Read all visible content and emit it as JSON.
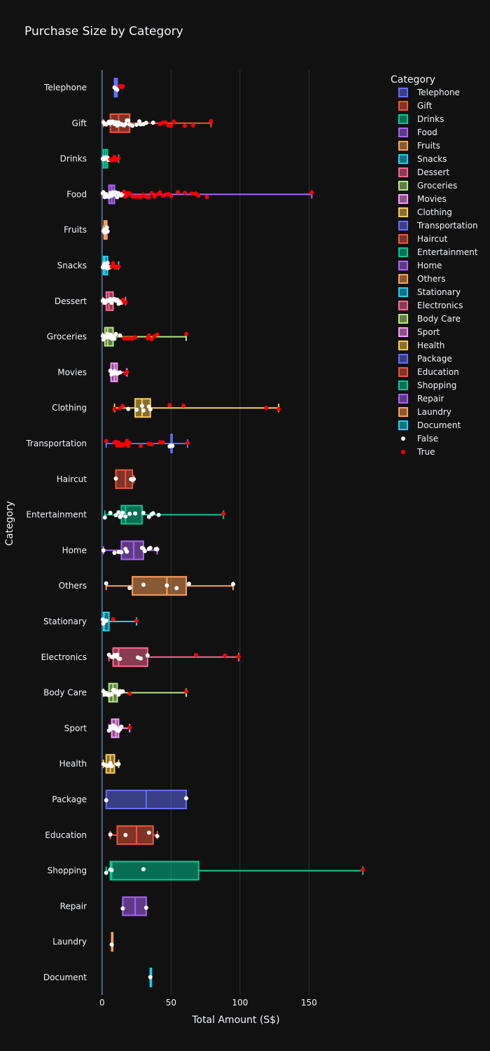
{
  "chart_data": {
    "type": "box",
    "title": "Purchase Size by Category",
    "xlabel": "Total Amount (S$)",
    "ylabel": "Category",
    "xlim": [
      -7,
      200
    ],
    "xticks": [
      0,
      50,
      100,
      150
    ],
    "grid": "vertical",
    "legend": {
      "title": "Category",
      "placement": "right"
    },
    "point_legend": [
      {
        "name": "False",
        "color": "#ffffff"
      },
      {
        "name": "True",
        "color": "#ff0000"
      }
    ],
    "series": [
      {
        "name": "Telephone",
        "color": "#636efa",
        "q1": 9,
        "median": 10,
        "q3": 11,
        "lo": 9,
        "hi": 11,
        "points_false": [
          9,
          10,
          10,
          11
        ],
        "points_true": [
          13,
          14,
          15
        ]
      },
      {
        "name": "Gift",
        "color": "#ef553b",
        "q1": 6,
        "median": 12,
        "q3": 20,
        "lo": 1,
        "hi": 79,
        "points_false": [
          1,
          2,
          3,
          4,
          5,
          6,
          7,
          8,
          9,
          10,
          11,
          12,
          13,
          14,
          15,
          16,
          17,
          18,
          19,
          20,
          22,
          25,
          27,
          28,
          30,
          32,
          37
        ],
        "points_true": [
          42,
          44,
          46,
          48,
          50,
          52,
          60,
          66,
          79
        ]
      },
      {
        "name": "Drinks",
        "color": "#00cc96",
        "q1": 1,
        "median": 2.5,
        "q3": 4,
        "lo": 0.5,
        "hi": 12,
        "points_false": [
          0.5,
          1,
          1.5,
          2,
          2.5,
          3,
          3.5,
          4,
          4.5,
          5,
          5.5
        ],
        "points_true": [
          6,
          7,
          8,
          9,
          10,
          11,
          12
        ]
      },
      {
        "name": "Food",
        "color": "#ab63fa",
        "q1": 5,
        "median": 7,
        "q3": 9,
        "lo": 0.5,
        "hi": 152,
        "points_false": [
          0.5,
          1,
          2,
          3,
          4,
          5,
          6,
          7,
          8,
          9,
          10,
          11,
          12,
          13,
          14,
          15
        ],
        "points_true": [
          16,
          17,
          18,
          19,
          20,
          22,
          24,
          26,
          28,
          30,
          32,
          34,
          36,
          38,
          40,
          42,
          44,
          46,
          48,
          50,
          55,
          60,
          65,
          68,
          70,
          76,
          152
        ]
      },
      {
        "name": "Fruits",
        "color": "#ffa15a",
        "q1": 1.5,
        "median": 2.5,
        "q3": 3.5,
        "lo": 1,
        "hi": 4,
        "points_false": [
          1,
          1.5,
          2,
          2.5,
          3,
          3.5,
          4
        ],
        "points_true": []
      },
      {
        "name": "Snacks",
        "color": "#19d3f3",
        "q1": 1,
        "median": 2,
        "q3": 4,
        "lo": 0.5,
        "hi": 12,
        "points_false": [
          0.5,
          1,
          1.5,
          2,
          2.5,
          3,
          3.5,
          4,
          5,
          6
        ],
        "points_true": [
          7,
          8,
          9,
          10,
          11,
          12
        ]
      },
      {
        "name": "Dessert",
        "color": "#ff6692",
        "q1": 3,
        "median": 5,
        "q3": 8,
        "lo": 0.5,
        "hi": 17,
        "points_false": [
          0.5,
          1,
          2,
          3,
          4,
          5,
          6,
          7,
          8,
          9,
          10,
          11,
          12,
          13,
          14
        ],
        "points_true": [
          15,
          16,
          17
        ]
      },
      {
        "name": "Groceries",
        "color": "#b6e880",
        "q1": 2,
        "median": 4,
        "q3": 8,
        "lo": 0.5,
        "hi": 61,
        "points_false": [
          0.5,
          1,
          2,
          3,
          4,
          5,
          6,
          7,
          8,
          9,
          10,
          13
        ],
        "points_true": [
          16,
          18,
          20,
          22,
          24,
          33,
          34,
          36,
          38,
          40,
          61
        ]
      },
      {
        "name": "Movies",
        "color": "#ff97ff",
        "q1": 6.5,
        "median": 9,
        "q3": 11,
        "lo": 6,
        "hi": 18,
        "points_false": [
          6,
          7,
          8,
          9,
          10,
          11,
          12,
          13
        ],
        "points_true": [
          17,
          18
        ]
      },
      {
        "name": "Clothing",
        "color": "#fecb52",
        "q1": 24,
        "median": 29,
        "q3": 35,
        "lo": 9,
        "hi": 128,
        "points_false": [
          19,
          25,
          29,
          30,
          34,
          35
        ],
        "points_true": [
          9,
          13,
          15,
          49,
          59,
          119,
          128
        ]
      },
      {
        "name": "Transportation",
        "color": "#636efa",
        "q1": 50,
        "median": 50,
        "q3": 50,
        "lo": 3,
        "hi": 62,
        "points_false": [
          49,
          50,
          51
        ],
        "points_true": [
          3,
          9,
          10,
          11,
          12,
          13,
          14,
          15,
          16,
          17,
          18,
          19,
          20,
          28,
          34,
          36,
          42,
          44,
          62
        ]
      },
      {
        "name": "Haircut",
        "color": "#ef553b",
        "q1": 10,
        "median": 17,
        "q3": 22,
        "lo": 10,
        "hi": 23,
        "points_false": [
          10,
          21,
          22,
          23
        ],
        "points_true": []
      },
      {
        "name": "Entertainment",
        "color": "#00cc96",
        "q1": 14,
        "median": 17,
        "q3": 29,
        "lo": 2,
        "hi": 88,
        "points_false": [
          2,
          6,
          10,
          12,
          13,
          14,
          15,
          17,
          20,
          24,
          30,
          34,
          36,
          37,
          41
        ],
        "points_true": [
          88
        ]
      },
      {
        "name": "Home",
        "color": "#ab63fa",
        "q1": 14,
        "median": 23,
        "q3": 30,
        "lo": 1,
        "hi": 40,
        "points_false": [
          1,
          9,
          12,
          14,
          17,
          18,
          29,
          30,
          31,
          34,
          35,
          39,
          40
        ],
        "points_true": []
      },
      {
        "name": "Others",
        "color": "#ffa15a",
        "q1": 22,
        "median": 47,
        "q3": 61,
        "lo": 3,
        "hi": 95,
        "points_false": [
          3,
          20,
          30,
          47,
          54,
          63,
          95
        ],
        "points_true": []
      },
      {
        "name": "Stationary",
        "color": "#19d3f3",
        "q1": 1,
        "median": 1.5,
        "q3": 5,
        "lo": 0.5,
        "hi": 25,
        "points_false": [
          0.5,
          1,
          1.5,
          2,
          3
        ],
        "points_true": [
          8,
          25
        ]
      },
      {
        "name": "Electronics",
        "color": "#ff6692",
        "q1": 8,
        "median": 12,
        "q3": 33,
        "lo": 5,
        "hi": 99,
        "points_false": [
          5,
          7,
          8,
          9,
          10,
          11,
          12,
          13,
          26,
          28,
          33
        ],
        "points_true": [
          68,
          89,
          99
        ]
      },
      {
        "name": "Body Care",
        "color": "#b6e880",
        "q1": 5,
        "median": 8,
        "q3": 11,
        "lo": 1,
        "hi": 61,
        "points_false": [
          1,
          2,
          3,
          4,
          5,
          6,
          7,
          8,
          9,
          10,
          11,
          12,
          13,
          14,
          15
        ],
        "points_true": [
          20,
          61
        ]
      },
      {
        "name": "Sport",
        "color": "#ff97ff",
        "q1": 7,
        "median": 10,
        "q3": 12,
        "lo": 5,
        "hi": 20,
        "points_false": [
          5,
          6,
          7,
          8,
          9,
          10,
          11,
          12,
          13,
          14
        ],
        "points_true": [
          20
        ]
      },
      {
        "name": "Health",
        "color": "#fecb52",
        "q1": 3,
        "median": 6,
        "q3": 9,
        "lo": 1,
        "hi": 12,
        "points_false": [
          1,
          3,
          4,
          5,
          6,
          7,
          11,
          12
        ],
        "points_true": []
      },
      {
        "name": "Package",
        "color": "#636efa",
        "q1": 3,
        "median": 32,
        "q3": 61,
        "lo": 3,
        "hi": 61,
        "points_false": [
          3,
          61
        ],
        "points_true": []
      },
      {
        "name": "Education",
        "color": "#ef553b",
        "q1": 11,
        "median": 25,
        "q3": 37,
        "lo": 6,
        "hi": 40,
        "points_false": [
          6,
          17,
          34,
          40
        ],
        "points_true": []
      },
      {
        "name": "Shopping",
        "color": "#00cc96",
        "q1": 6,
        "median": 7,
        "q3": 70,
        "lo": 3,
        "hi": 189,
        "points_false": [
          3,
          6,
          7,
          30
        ],
        "points_true": [
          189
        ]
      },
      {
        "name": "Repair",
        "color": "#ab63fa",
        "q1": 15,
        "median": 24,
        "q3": 32,
        "lo": 15,
        "hi": 32,
        "points_false": [
          15,
          32
        ],
        "points_true": []
      },
      {
        "name": "Laundry",
        "color": "#ffa15a",
        "q1": 7,
        "median": 7,
        "q3": 7,
        "lo": 7,
        "hi": 7,
        "points_false": [
          7
        ],
        "points_true": []
      },
      {
        "name": "Document",
        "color": "#19d3f3",
        "q1": 35,
        "median": 35,
        "q3": 35,
        "lo": 35,
        "hi": 35,
        "points_false": [
          35
        ],
        "points_true": []
      }
    ]
  }
}
